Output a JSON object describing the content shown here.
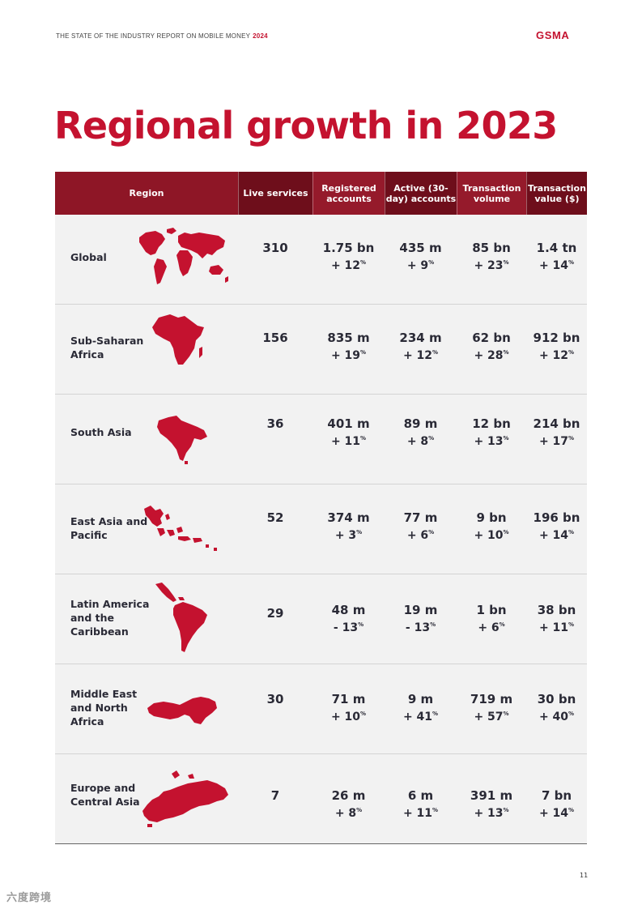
{
  "header": {
    "report_title": "THE STATE OF THE INDUSTRY REPORT ON MOBILE MONEY",
    "year": "2024",
    "logo_text": "GSMA"
  },
  "title": "Regional growth in 2023",
  "table": {
    "columns": [
      "Region",
      "Live services",
      "Registered accounts",
      "Active (30-day) accounts",
      "Transaction volume",
      "Transaction value ($)"
    ],
    "rows": [
      {
        "region": "Global",
        "map_icon": "world-map-icon",
        "live": "310",
        "reg": "1.75 bn",
        "reg_g": "+ 12",
        "act": "435 m",
        "act_g": "+ 9",
        "vol": "85 bn",
        "vol_g": "+ 23",
        "val": "1.4 tn",
        "val_g": "+ 14"
      },
      {
        "region": "Sub-Saharan Africa",
        "map_icon": "africa-map-icon",
        "live": "156",
        "reg": "835 m",
        "reg_g": "+ 19",
        "act": "234 m",
        "act_g": "+ 12",
        "vol": "62 bn",
        "vol_g": "+ 28",
        "val": "912 bn",
        "val_g": "+ 12"
      },
      {
        "region": "South Asia",
        "map_icon": "south-asia-map-icon",
        "live": "36",
        "reg": "401 m",
        "reg_g": "+ 11",
        "act": "89 m",
        "act_g": "+ 8",
        "vol": "12 bn",
        "vol_g": "+ 13",
        "val": "214 bn",
        "val_g": "+ 17"
      },
      {
        "region": "East Asia and Pacific",
        "map_icon": "east-asia-pacific-map-icon",
        "live": "52",
        "reg": "374 m",
        "reg_g": "+ 3",
        "act": "77 m",
        "act_g": "+ 6",
        "vol": "9 bn",
        "vol_g": "+ 10",
        "val": "196 bn",
        "val_g": "+ 14"
      },
      {
        "region": "Latin America and the Caribbean",
        "map_icon": "latin-america-map-icon",
        "live": "29",
        "reg": "48 m",
        "reg_g": "- 13",
        "act": "19 m",
        "act_g": "- 13",
        "vol": "1 bn",
        "vol_g": "+ 6",
        "val": "38 bn",
        "val_g": "+ 11"
      },
      {
        "region": "Middle East and North Africa",
        "map_icon": "mena-map-icon",
        "live": "30",
        "reg": "71 m",
        "reg_g": "+ 10",
        "act": "9 m",
        "act_g": "+ 41",
        "vol": "719 m",
        "vol_g": "+ 57",
        "val": "30 bn",
        "val_g": "+ 40"
      },
      {
        "region": "Europe and Central Asia",
        "map_icon": "europe-central-asia-map-icon",
        "live": "7",
        "reg": "26 m",
        "reg_g": "+ 8",
        "act": "6 m",
        "act_g": "+ 11",
        "vol": "391 m",
        "vol_g": "+ 13",
        "val": "7 bn",
        "val_g": "+ 14"
      }
    ],
    "percent_symbol": "%"
  },
  "page_number": "11",
  "watermark": "六度跨境",
  "colors": {
    "brand_red": "#c4122f",
    "header_dark": "#6e0e1b",
    "header_mid": "#951a2b"
  }
}
